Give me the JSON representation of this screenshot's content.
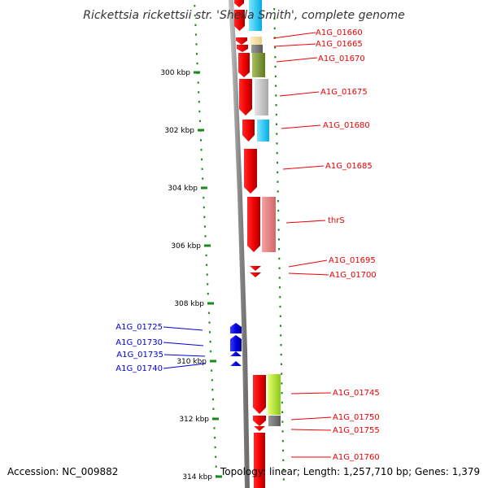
{
  "title": "Rickettsia rickettsii str. 'Sheila Smith', complete genome",
  "accession": "Accession: NC_009882",
  "summary": "Topology: linear; Length: 1,257,710 bp; Genes: 1,379",
  "colors": {
    "forward": "#ee0000",
    "reverse": "#0000dd",
    "backbone": "#8c8c8c"
  },
  "scale": {
    "ticks": [
      {
        "label": "300 kbp",
        "value": 300000
      },
      {
        "label": "302 kbp",
        "value": 302000
      },
      {
        "label": "304 kbp",
        "value": 304000
      },
      {
        "label": "306 kbp",
        "value": 306000
      },
      {
        "label": "308 kbp",
        "value": 308000
      },
      {
        "label": "310 kbp",
        "value": 310000
      },
      {
        "label": "312 kbp",
        "value": 312000
      },
      {
        "label": "314 kbp",
        "value": 314000
      }
    ]
  },
  "genes": [
    {
      "label": "A1G_01660",
      "strand": "forward"
    },
    {
      "label": "A1G_01665",
      "strand": "forward"
    },
    {
      "label": "A1G_01670",
      "strand": "forward"
    },
    {
      "label": "A1G_01675",
      "strand": "forward"
    },
    {
      "label": "A1G_01680",
      "strand": "forward"
    },
    {
      "label": "A1G_01685",
      "strand": "forward"
    },
    {
      "label": "thrS",
      "strand": "forward"
    },
    {
      "label": "A1G_01695",
      "strand": "forward"
    },
    {
      "label": "A1G_01700",
      "strand": "forward"
    },
    {
      "label": "A1G_01725",
      "strand": "reverse"
    },
    {
      "label": "A1G_01730",
      "strand": "reverse"
    },
    {
      "label": "A1G_01735",
      "strand": "reverse"
    },
    {
      "label": "A1G_01740",
      "strand": "reverse"
    },
    {
      "label": "A1G_01745",
      "strand": "forward"
    },
    {
      "label": "A1G_01750",
      "strand": "forward"
    },
    {
      "label": "A1G_01755",
      "strand": "forward"
    },
    {
      "label": "A1G_01760",
      "strand": "forward"
    }
  ]
}
